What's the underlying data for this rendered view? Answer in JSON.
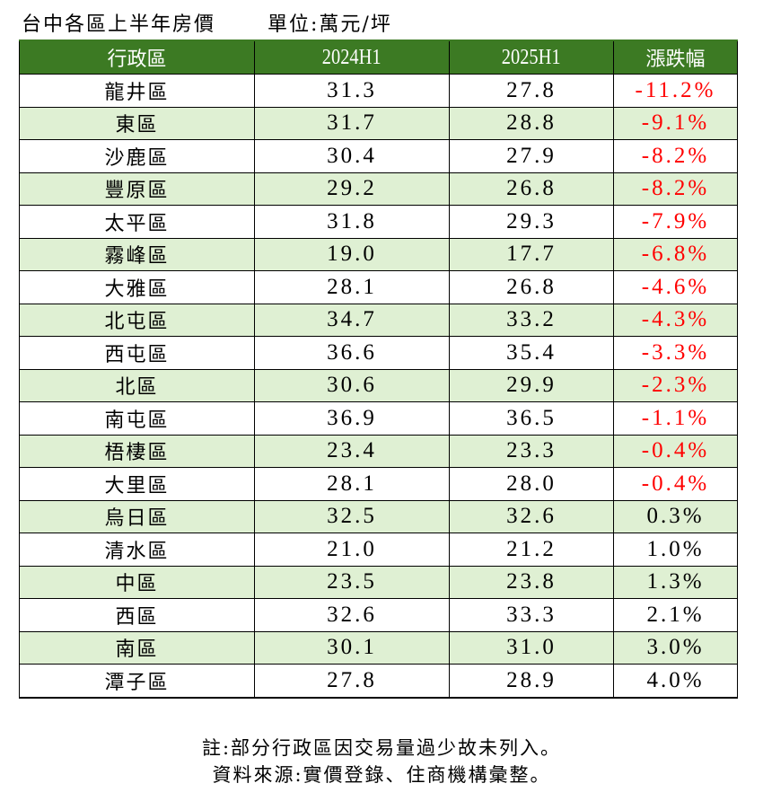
{
  "title": "台中各區上半年房價",
  "unit": "單位:萬元/坪",
  "colors": {
    "header_bg": "#3c7a23",
    "alt_row_bg": "#dff0d3",
    "negative": "#ff0000"
  },
  "table": {
    "headers": [
      "行政區",
      "2024H1",
      "2025H1",
      "漲跌幅"
    ],
    "rows": [
      {
        "district": "龍井區",
        "h2024": "31.3",
        "h2025": "27.8",
        "change": "-11.2%"
      },
      {
        "district": "東區",
        "h2024": "31.7",
        "h2025": "28.8",
        "change": "-9.1%"
      },
      {
        "district": "沙鹿區",
        "h2024": "30.4",
        "h2025": "27.9",
        "change": "-8.2%"
      },
      {
        "district": "豐原區",
        "h2024": "29.2",
        "h2025": "26.8",
        "change": "-8.2%"
      },
      {
        "district": "太平區",
        "h2024": "31.8",
        "h2025": "29.3",
        "change": "-7.9%"
      },
      {
        "district": "霧峰區",
        "h2024": "19.0",
        "h2025": "17.7",
        "change": "-6.8%"
      },
      {
        "district": "大雅區",
        "h2024": "28.1",
        "h2025": "26.8",
        "change": "-4.6%"
      },
      {
        "district": "北屯區",
        "h2024": "34.7",
        "h2025": "33.2",
        "change": "-4.3%"
      },
      {
        "district": "西屯區",
        "h2024": "36.6",
        "h2025": "35.4",
        "change": "-3.3%"
      },
      {
        "district": "北區",
        "h2024": "30.6",
        "h2025": "29.9",
        "change": "-2.3%"
      },
      {
        "district": "南屯區",
        "h2024": "36.9",
        "h2025": "36.5",
        "change": "-1.1%"
      },
      {
        "district": "梧棲區",
        "h2024": "23.4",
        "h2025": "23.3",
        "change": "-0.4%"
      },
      {
        "district": "大里區",
        "h2024": "28.1",
        "h2025": "28.0",
        "change": "-0.4%"
      },
      {
        "district": "烏日區",
        "h2024": "32.5",
        "h2025": "32.6",
        "change": "0.3%"
      },
      {
        "district": "清水區",
        "h2024": "21.0",
        "h2025": "21.2",
        "change": "1.0%"
      },
      {
        "district": "中區",
        "h2024": "23.5",
        "h2025": "23.8",
        "change": "1.3%"
      },
      {
        "district": "西區",
        "h2024": "32.6",
        "h2025": "33.3",
        "change": "2.1%"
      },
      {
        "district": "南區",
        "h2024": "30.1",
        "h2025": "31.0",
        "change": "3.0%"
      },
      {
        "district": "潭子區",
        "h2024": "27.8",
        "h2025": "28.9",
        "change": "4.0%"
      }
    ]
  },
  "notes": {
    "line1": "註:部分行政區因交易量過少故未列入。",
    "line2": "資料來源:實價登錄、住商機構彙整。"
  }
}
